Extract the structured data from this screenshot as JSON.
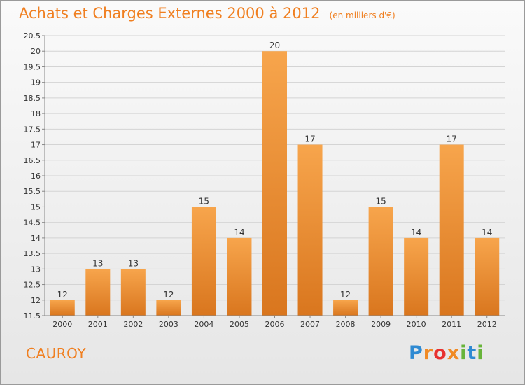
{
  "header": {
    "title": "Achats et Charges Externes 2000 à 2012",
    "subtitle": "(en milliers d'€)"
  },
  "footer": {
    "town": "CAUROY",
    "logo_text": "Proxiti"
  },
  "colors": {
    "bar_light": "#f7a54c",
    "bar_dark": "#d9761e",
    "title": "#f07f20",
    "axis": "#888888",
    "grid": "#d4d4d4"
  },
  "chart_data": {
    "type": "bar",
    "title": "Achats et Charges Externes 2000 à 2012",
    "subtitle": "(en milliers d'€)",
    "xlabel": "",
    "ylabel": "",
    "categories": [
      "2000",
      "2001",
      "2002",
      "2003",
      "2004",
      "2005",
      "2006",
      "2007",
      "2008",
      "2009",
      "2010",
      "2011",
      "2012"
    ],
    "values": [
      12,
      13,
      13,
      12,
      15,
      14,
      20,
      17,
      12,
      15,
      14,
      17,
      14
    ],
    "ylim": [
      11.5,
      20.5
    ],
    "yticks": [
      "11.5",
      "12",
      "12.5",
      "13",
      "13.5",
      "14",
      "14.5",
      "15",
      "15.5",
      "16",
      "16.5",
      "17",
      "17.5",
      "18",
      "18.5",
      "19",
      "19.5",
      "20",
      "20.5"
    ],
    "grid": true,
    "legend": "none"
  }
}
